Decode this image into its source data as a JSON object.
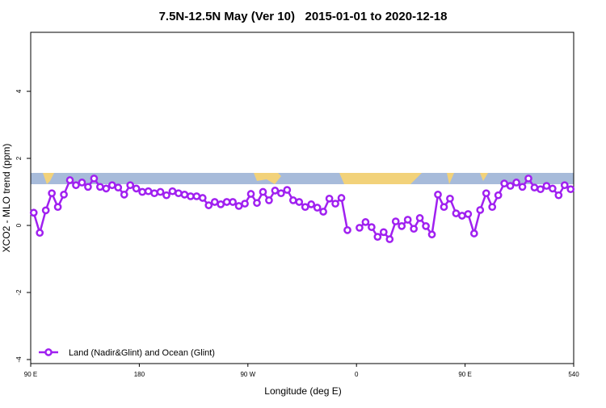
{
  "chart_data": {
    "type": "line",
    "title": "7.5N-12.5N May (Ver 10)   2015-01-01 to 2020-12-18",
    "xlabel": "Longitude (deg E)",
    "ylabel": "XCO2 - MLO trend (ppm)",
    "x": [
      92.5,
      97.5,
      102.5,
      107.5,
      112.5,
      117.5,
      122.5,
      127.5,
      132.5,
      137.5,
      142.5,
      147.5,
      152.5,
      157.5,
      162.5,
      167.5,
      172.5,
      177.5,
      182.5,
      187.5,
      192.5,
      197.5,
      202.5,
      207.5,
      212.5,
      217.5,
      222.5,
      227.5,
      232.5,
      237.5,
      242.5,
      247.5,
      252.5,
      257.5,
      262.5,
      267.5,
      272.5,
      277.5,
      282.5,
      287.5,
      292.5,
      297.5,
      302.5,
      307.5,
      312.5,
      317.5,
      322.5,
      327.5,
      332.5,
      337.5,
      342.5,
      347.5,
      352.5,
      357.5,
      362.5,
      367.5,
      372.5,
      377.5,
      382.5,
      387.5,
      392.5,
      397.5,
      402.5,
      407.5,
      412.5,
      417.5,
      422.5,
      427.5,
      432.5,
      437.5,
      442.5,
      447.5,
      452.5,
      457.5,
      462.5,
      467.5,
      472.5,
      477.5,
      482.5,
      487.5,
      492.5,
      497.5,
      502.5,
      507.5,
      512.5,
      517.5,
      522.5,
      527.5,
      532.5,
      537.5
    ],
    "series": [
      {
        "name": "Land (Nadir&Glint) and Ocean (Glint)",
        "color": "#a020f0",
        "values": [
          0.38,
          -0.22,
          0.45,
          0.96,
          0.55,
          0.92,
          1.35,
          1.2,
          1.28,
          1.15,
          1.4,
          1.15,
          1.1,
          1.2,
          1.13,
          0.92,
          1.2,
          1.1,
          1.0,
          1.02,
          0.96,
          1.0,
          0.9,
          1.02,
          0.96,
          0.92,
          0.87,
          0.87,
          0.82,
          0.6,
          0.7,
          0.63,
          0.7,
          0.7,
          0.58,
          0.65,
          0.94,
          0.67,
          1.0,
          0.75,
          1.04,
          0.96,
          1.06,
          0.75,
          0.7,
          0.55,
          0.63,
          0.53,
          0.41,
          0.8,
          0.65,
          0.82,
          -0.14,
          null,
          -0.07,
          0.1,
          -0.05,
          -0.34,
          -0.2,
          -0.41,
          0.12,
          -0.02,
          0.17,
          -0.1,
          0.22,
          -0.02,
          -0.27,
          0.92,
          0.55,
          0.8,
          0.36,
          0.29,
          0.34,
          -0.24,
          0.46,
          0.96,
          0.55,
          0.9,
          1.25,
          1.18,
          1.28,
          1.15,
          1.4,
          1.13,
          1.08,
          1.18,
          1.1,
          0.9,
          1.2,
          1.08
        ]
      }
    ],
    "xlim": [
      90,
      540
    ],
    "xticks": [
      {
        "value": 90,
        "label": "90 E"
      },
      180,
      {
        "value": 270,
        "label": "90 W"
      },
      {
        "value": 360,
        "label": "0"
      },
      {
        "value": 450,
        "label": "90 E"
      },
      540
    ],
    "ylim": [
      -4.12,
      5.76
    ],
    "yticks": [
      -4,
      -2,
      0,
      2,
      4
    ],
    "legend": "bottom-left"
  }
}
